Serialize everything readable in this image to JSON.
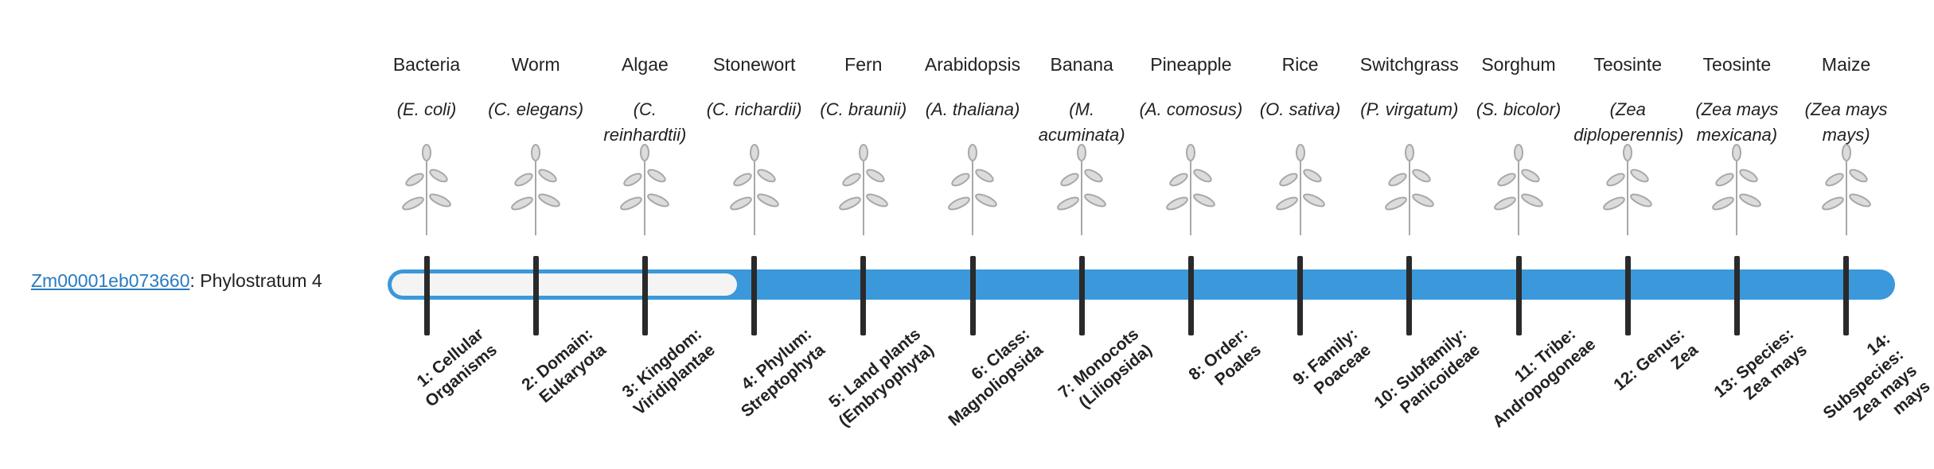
{
  "gene": {
    "id": "Zm00001eb073660",
    "label": ": Phylostratum",
    "stratum": 4
  },
  "strata": [
    {
      "organism": "Bacteria",
      "species": "(E. coli)",
      "label": "1: Cellular Organisms"
    },
    {
      "organism": "Worm",
      "species": "(C. elegans)",
      "label": "2: Domain: Eukaryota"
    },
    {
      "organism": "Algae",
      "species": "(C. reinhardtii)",
      "label": "3: Kingdom: Viridiplantae"
    },
    {
      "organism": "Stonewort",
      "species": "(C. richardii)",
      "label": "4: Phylum: Streptophyta"
    },
    {
      "organism": "Fern",
      "species": "(C. braunii)",
      "label": "5: Land plants (Embryophyta)"
    },
    {
      "organism": "Arabidopsis",
      "species": "(A. thaliana)",
      "label": "6: Class: Magnoliopsida"
    },
    {
      "organism": "Banana",
      "species": "(M. acuminata)",
      "label": "7: Monocots (Liliopsida)"
    },
    {
      "organism": "Pineapple",
      "species": "(A. comosus)",
      "label": "8: Order: Poales"
    },
    {
      "organism": "Rice",
      "species": "(O. sativa)",
      "label": "9: Family: Poaceae"
    },
    {
      "organism": "Switchgrass",
      "species": "(P. virgatum)",
      "label": "10: Subfamily: Panicoideae"
    },
    {
      "organism": "Sorghum",
      "species": "(S. bicolor)",
      "label": "11: Tribe: Andropogoneae"
    },
    {
      "organism": "Teosinte",
      "species": "(Zea diploperennis)",
      "label": "12: Genus: Zea"
    },
    {
      "organism": "Teosinte",
      "species": "(Zea mays mexicana)",
      "label": "13: Species: Zea mays"
    },
    {
      "organism": "Maize",
      "species": "(Zea mays mays)",
      "label": "14: Subspecies: Zea mays mays"
    }
  ]
}
